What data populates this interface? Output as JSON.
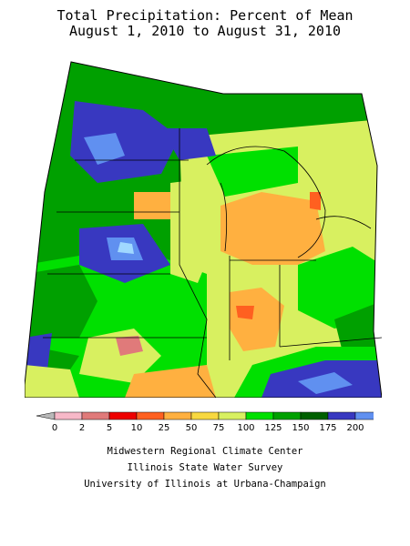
{
  "title": {
    "line1": "Total Precipitation: Percent of Mean",
    "line2": "August 1, 2010 to August 31, 2010"
  },
  "legend": {
    "labels": [
      "0",
      "2",
      "5",
      "10",
      "25",
      "50",
      "75",
      "100",
      "125",
      "150",
      "175",
      "200"
    ],
    "colors": [
      "#b8b8b8",
      "#f7b8c8",
      "#e07a7a",
      "#ee0000",
      "#ff6020",
      "#ffb040",
      "#f8d840",
      "#d8f060",
      "#00e000",
      "#00a000",
      "#006000",
      "#3838c0",
      "#6090f0",
      "#a0d8ff"
    ]
  },
  "credits": {
    "line1": "Midwestern Regional Climate Center",
    "line2": "Illinois State Water Survey",
    "line3": "University of Illinois at Urbana-Champaign"
  }
}
